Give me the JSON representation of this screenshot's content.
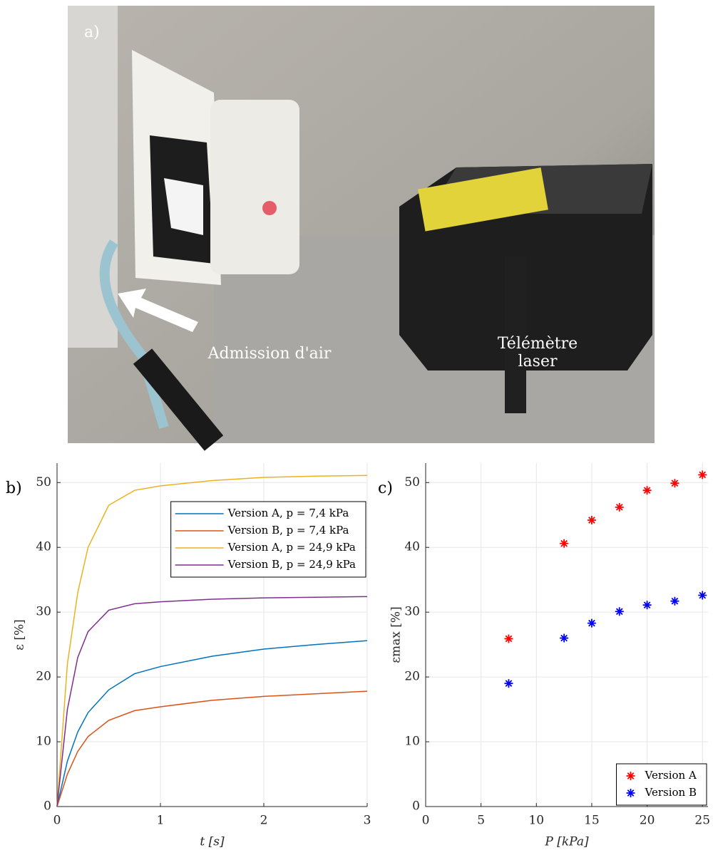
{
  "photo": {
    "label": "a)",
    "annotations": [
      "Admission d'air",
      "Télémètre",
      "laser"
    ]
  },
  "chart_data": [
    {
      "type": "line",
      "panel_label": "b)",
      "x_label": "t [s]",
      "y_label": "ε [%]",
      "x": [
        0,
        0.1,
        0.2,
        0.3,
        0.5,
        0.75,
        1,
        1.5,
        2,
        2.5,
        3
      ],
      "series": [
        {
          "name": "Version A, p = 7,4 kPa",
          "color": "#0072BD",
          "values": [
            0,
            7,
            11.5,
            14.5,
            18,
            20.5,
            21.6,
            23.2,
            24.3,
            25,
            25.6
          ]
        },
        {
          "name": "Version B, p = 7,4 kPa",
          "color": "#D95319",
          "values": [
            0,
            5,
            8.5,
            10.8,
            13.3,
            14.8,
            15.4,
            16.4,
            17,
            17.4,
            17.8
          ]
        },
        {
          "name": "Version A, p = 24,9 kPa",
          "color": "#EDB120",
          "values": [
            0,
            22,
            33,
            40,
            46.5,
            48.8,
            49.5,
            50.3,
            50.8,
            51,
            51.1
          ]
        },
        {
          "name": "Version B, p = 24,9 kPa",
          "color": "#7E2F8E",
          "values": [
            0,
            15,
            23,
            27,
            30.3,
            31.3,
            31.6,
            32,
            32.2,
            32.3,
            32.4
          ]
        }
      ],
      "xlim": [
        0,
        3
      ],
      "ylim": [
        0,
        53
      ],
      "xticks": [
        0,
        1,
        2,
        3
      ],
      "yticks": [
        0,
        10,
        20,
        30,
        40,
        50
      ],
      "grid": true,
      "legend_position": "upper right"
    },
    {
      "type": "scatter",
      "panel_label": "c)",
      "x_label": "P [kPa]",
      "y_label": "εmax [%]",
      "x": [
        7.5,
        12.5,
        15,
        17.5,
        20,
        22.5,
        25
      ],
      "series": [
        {
          "name": "Version A",
          "color": "#FF0000",
          "values": [
            25.9,
            40.6,
            44.2,
            46.2,
            48.8,
            49.9,
            51.2
          ]
        },
        {
          "name": "Version B",
          "color": "#0000FF",
          "values": [
            19,
            26,
            28.3,
            30.1,
            31.1,
            31.7,
            32.6
          ]
        }
      ],
      "xlim": [
        0,
        25.5
      ],
      "ylim": [
        0,
        53
      ],
      "xticks": [
        0,
        5,
        10,
        15,
        20,
        25
      ],
      "yticks": [
        0,
        10,
        20,
        30,
        40,
        50
      ],
      "grid": true,
      "legend_position": "lower right"
    }
  ]
}
